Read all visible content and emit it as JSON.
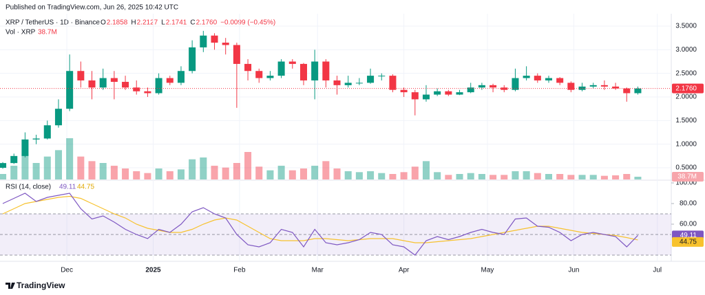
{
  "chart_data": {
    "type": "candlestick",
    "published": "Published on TradingView.com, Jun 26, 2025 10:42 UTC",
    "symbol": "XRP / TetherUS · 1D · Binance",
    "ohlc_readout": {
      "o_label": "O",
      "o": "2.1858",
      "h_label": "H",
      "h": "2.2127",
      "l_label": "L",
      "l": "2.1741",
      "c_label": "C",
      "c": "2.1760",
      "change": "−0.0099 (−0.45%)"
    },
    "volume_title": "Vol · XRP",
    "volume_readout": "38.7M",
    "last_price_label": "2.1760",
    "rsi_title": "RSI (14, close)",
    "rsi_readout": "49.11",
    "rsi_ma_readout": "44.75",
    "logo": "TradingView",
    "up_color": "#089981",
    "down_color": "#f23645",
    "x": [
      0,
      4,
      8,
      12,
      16,
      20,
      24,
      28,
      32,
      36,
      40,
      44,
      48,
      52,
      56,
      60,
      64,
      68,
      72,
      76,
      80,
      84,
      88,
      92,
      96,
      100,
      104,
      108,
      112,
      116,
      120,
      124,
      128,
      132,
      136,
      140,
      144,
      148,
      152,
      156,
      160,
      164,
      168,
      172,
      176,
      180,
      184,
      188,
      192,
      196,
      200,
      204,
      208,
      212,
      216,
      220,
      224,
      228
    ],
    "open": [
      0.5,
      0.6,
      0.75,
      1.1,
      1.12,
      1.4,
      1.75,
      2.55,
      2.35,
      2.2,
      2.4,
      2.32,
      2.2,
      2.12,
      2.08,
      2.4,
      2.3,
      2.55,
      3.05,
      3.3,
      3.15,
      3.1,
      2.7,
      2.55,
      2.4,
      2.45,
      2.75,
      2.7,
      2.35,
      2.75,
      2.35,
      2.25,
      2.3,
      2.3,
      2.45,
      2.45,
      2.15,
      2.1,
      1.95,
      2.05,
      2.12,
      2.05,
      2.1,
      2.2,
      2.25,
      2.2,
      2.15,
      2.4,
      2.45,
      2.35,
      2.4,
      2.3,
      2.15,
      2.22,
      2.25,
      2.22,
      2.18,
      2.08
    ],
    "high": [
      0.62,
      0.8,
      1.25,
      1.2,
      1.5,
      1.95,
      2.9,
      2.75,
      2.55,
      2.6,
      2.55,
      2.45,
      2.35,
      2.2,
      2.5,
      2.45,
      2.65,
      3.2,
      3.4,
      3.35,
      3.25,
      3.15,
      2.8,
      2.6,
      2.55,
      2.8,
      2.8,
      2.72,
      3.0,
      2.8,
      2.45,
      2.45,
      2.4,
      2.6,
      2.5,
      2.48,
      2.2,
      2.15,
      2.25,
      2.18,
      2.15,
      2.15,
      2.3,
      2.3,
      2.28,
      2.25,
      2.6,
      2.65,
      2.5,
      2.45,
      2.42,
      2.33,
      2.3,
      2.3,
      2.35,
      2.3,
      2.2,
      2.22
    ],
    "low": [
      0.48,
      0.58,
      0.72,
      1.0,
      1.1,
      1.35,
      1.7,
      2.2,
      1.95,
      2.15,
      1.95,
      2.15,
      2.05,
      2.0,
      2.05,
      2.25,
      2.25,
      2.5,
      2.95,
      3.0,
      2.9,
      1.77,
      2.35,
      2.3,
      2.35,
      2.4,
      2.6,
      2.25,
      1.95,
      2.2,
      2.05,
      2.2,
      2.25,
      2.28,
      2.35,
      2.1,
      2.0,
      1.61,
      1.9,
      2.02,
      2.02,
      2.04,
      2.08,
      2.15,
      2.1,
      2.1,
      2.12,
      2.35,
      2.3,
      2.3,
      2.25,
      2.1,
      2.12,
      2.18,
      2.15,
      2.15,
      1.9,
      2.05
    ],
    "close": [
      0.6,
      0.75,
      1.1,
      1.12,
      1.4,
      1.75,
      2.55,
      2.35,
      2.2,
      2.4,
      2.32,
      2.2,
      2.12,
      2.08,
      2.4,
      2.3,
      2.55,
      3.05,
      3.3,
      3.15,
      3.1,
      2.7,
      2.55,
      2.4,
      2.45,
      2.75,
      2.7,
      2.35,
      2.75,
      2.35,
      2.25,
      2.3,
      2.3,
      2.45,
      2.45,
      2.15,
      2.1,
      1.95,
      2.05,
      2.12,
      2.05,
      2.1,
      2.2,
      2.25,
      2.2,
      2.15,
      2.4,
      2.45,
      2.35,
      2.4,
      2.3,
      2.15,
      2.22,
      2.25,
      2.22,
      2.18,
      2.08,
      2.18
    ],
    "volume": [
      600,
      1500,
      2800,
      1800,
      2500,
      3200,
      4500,
      2500,
      2000,
      1800,
      1500,
      1200,
      900,
      700,
      1200,
      900,
      1100,
      2200,
      2400,
      1500,
      1300,
      1800,
      3000,
      1400,
      1000,
      1500,
      1000,
      1200,
      1500,
      2000,
      1200,
      900,
      800,
      900,
      700,
      600,
      800,
      1400,
      2000,
      800,
      500,
      600,
      700,
      600,
      500,
      500,
      900,
      900,
      700,
      600,
      600,
      500,
      500,
      500,
      400,
      450,
      600,
      300
    ],
    "volume_ylim": [
      0,
      9000
    ],
    "rsi": [
      80,
      85,
      90,
      82,
      86,
      88,
      90,
      75,
      65,
      68,
      62,
      55,
      50,
      46,
      55,
      52,
      60,
      72,
      76,
      70,
      66,
      50,
      40,
      38,
      42,
      55,
      52,
      38,
      55,
      42,
      40,
      42,
      45,
      52,
      50,
      40,
      38,
      30,
      44,
      48,
      45,
      48,
      52,
      55,
      52,
      50,
      65,
      66,
      58,
      57,
      52,
      44,
      50,
      52,
      50,
      48,
      38,
      49.11
    ],
    "rsi_ma": [
      70,
      75,
      80,
      82,
      84,
      86,
      87,
      85,
      80,
      75,
      70,
      66,
      60,
      56,
      54,
      52,
      52,
      55,
      60,
      64,
      66,
      64,
      58,
      52,
      46,
      44,
      44,
      44,
      46,
      46,
      45,
      44,
      45,
      46,
      46,
      46,
      44,
      42,
      42,
      43,
      44,
      45,
      46,
      48,
      50,
      52,
      54,
      56,
      58,
      58,
      56,
      54,
      52,
      51,
      50,
      49,
      47,
      44.75
    ],
    "rsi_color": "#7e57c2",
    "rsi_ma_color": "#f7c22e",
    "rsi_ylim": [
      25,
      100
    ],
    "rsi_yticks": [
      {
        "value": 100,
        "label": "100.00"
      },
      {
        "value": 80,
        "label": "80.00"
      },
      {
        "value": 60,
        "label": "60.00"
      }
    ],
    "rsi_band": [
      30,
      70
    ],
    "rsi_mid": 50,
    "xlim": [
      -1,
      240
    ],
    "xticks": [
      {
        "value": 23,
        "label": "Dec"
      },
      {
        "value": 54,
        "label": "2025"
      },
      {
        "value": 85,
        "label": "Feb"
      },
      {
        "value": 113,
        "label": "Mar"
      },
      {
        "value": 144,
        "label": "Apr"
      },
      {
        "value": 174,
        "label": "May"
      },
      {
        "value": 205,
        "label": "Jun"
      },
      {
        "value": 235,
        "label": "Jul"
      }
    ],
    "ylim": [
      0.2,
      3.8
    ],
    "yticks": [
      {
        "value": 0.5,
        "label": "0.5000"
      },
      {
        "value": 1,
        "label": "1.0000"
      },
      {
        "value": 1.5,
        "label": "1.5000"
      },
      {
        "value": 2,
        "label": "2.0000"
      },
      {
        "value": 2.5,
        "label": "2.5000"
      },
      {
        "value": 3,
        "label": "3.0000"
      },
      {
        "value": 3.5,
        "label": "3.5000"
      }
    ]
  }
}
